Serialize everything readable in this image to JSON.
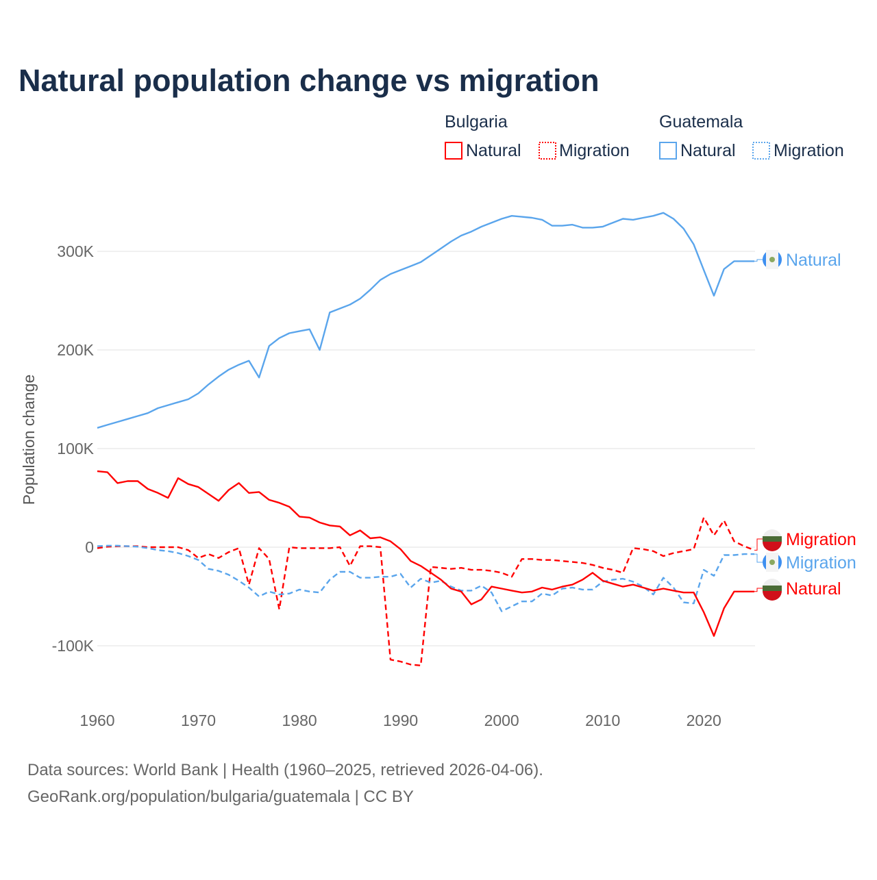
{
  "chart_data": {
    "type": "line",
    "title": "Natural population change vs migration",
    "ylabel": "Population change",
    "xlabel": "",
    "xlim": [
      1960,
      2025
    ],
    "ylim": [
      -150000,
      350000
    ],
    "x_ticks": [
      "1960",
      "1970",
      "1980",
      "1990",
      "2000",
      "2010",
      "2020"
    ],
    "y_ticks": [
      {
        "value": -100000,
        "label": "-100K"
      },
      {
        "value": 0,
        "label": "0"
      },
      {
        "value": 100000,
        "label": "100K"
      },
      {
        "value": 200000,
        "label": "200K"
      },
      {
        "value": 300000,
        "label": "300K"
      }
    ],
    "grid": true,
    "legend": {
      "placement": "top-right",
      "groups": [
        {
          "country": "Bulgaria",
          "items": [
            "Natural",
            "Migration"
          ]
        },
        {
          "country": "Guatemala",
          "items": [
            "Natural",
            "Migration"
          ]
        }
      ]
    },
    "x_start": 1960,
    "series": [
      {
        "name": "Guatemala Natural",
        "country": "Guatemala",
        "kind": "Natural",
        "color": "#5aa5ec",
        "dash": false,
        "end_label": "Natural",
        "values_k": [
          121,
          124,
          127,
          130,
          133,
          136,
          141,
          144,
          147,
          150,
          156,
          165,
          173,
          180,
          185,
          189,
          172,
          204,
          212,
          217,
          219,
          221,
          200,
          238,
          242,
          246,
          252,
          261,
          271,
          277,
          281,
          285,
          289,
          296,
          303,
          310,
          316,
          320,
          325,
          329,
          333,
          336,
          335,
          334,
          332,
          326,
          326,
          327,
          324,
          324,
          325,
          329,
          333,
          332,
          334,
          336,
          339,
          333,
          323,
          307,
          281,
          255,
          282,
          290,
          290,
          290
        ]
      },
      {
        "name": "Bulgaria Migration",
        "country": "Bulgaria",
        "kind": "Migration",
        "color": "#ff0000",
        "dash": true,
        "end_label": "Migration",
        "values_k": [
          -1,
          0.5,
          1,
          1,
          1,
          0,
          0,
          0,
          0,
          -3,
          -11,
          -7,
          -11,
          -5,
          -1,
          -38,
          -1,
          -12,
          -63,
          0,
          -1,
          -1,
          -1,
          -1,
          0,
          -19,
          1,
          1,
          0,
          -114,
          -116,
          -119,
          -120,
          -20,
          -21,
          -22,
          -21,
          -23,
          -23,
          -24,
          -26,
          -30,
          -12,
          -12,
          -13,
          -13,
          -14,
          -15,
          -16,
          -18,
          -21,
          -23,
          -26,
          -1,
          -2,
          -4,
          -9,
          -6,
          -4,
          -2,
          30,
          12,
          27,
          6,
          1,
          -3
        ]
      },
      {
        "name": "Guatemala Migration",
        "country": "Guatemala",
        "kind": "Migration",
        "color": "#5aa5ec",
        "dash": true,
        "end_label": "Migration",
        "values_k": [
          1,
          1.5,
          1.5,
          1,
          0.5,
          -1,
          -3,
          -4,
          -6,
          -9,
          -13,
          -22,
          -24,
          -28,
          -34,
          -41,
          -50,
          -45,
          -48,
          -47,
          -43,
          -45,
          -46,
          -33,
          -25,
          -25,
          -31,
          -31,
          -30,
          -30,
          -27,
          -41,
          -32,
          -36,
          -34,
          -40,
          -44,
          -44,
          -39,
          -46,
          -65,
          -60,
          -55,
          -55,
          -47,
          -49,
          -42,
          -41,
          -43,
          -43,
          -35,
          -33,
          -32,
          -35,
          -40,
          -48,
          -31,
          -41,
          -56,
          -57,
          -23,
          -29,
          -8,
          -8,
          -7,
          -7
        ]
      },
      {
        "name": "Bulgaria Natural",
        "country": "Bulgaria",
        "kind": "Natural",
        "color": "#ff0000",
        "dash": false,
        "end_label": "Natural",
        "values_k": [
          77,
          76,
          65,
          67,
          67,
          59,
          55,
          50,
          70,
          64,
          61,
          54,
          47,
          58,
          65,
          55,
          56,
          48,
          45,
          41,
          31,
          30,
          25,
          22,
          21,
          12,
          17,
          9,
          10,
          6,
          -2,
          -14,
          -19,
          -26,
          -33,
          -42,
          -45,
          -58,
          -53,
          -40,
          -42,
          -44,
          -46,
          -45,
          -41,
          -43,
          -40,
          -38,
          -33,
          -26,
          -34,
          -37,
          -40,
          -38,
          -41,
          -44,
          -42,
          -44,
          -46,
          -46,
          -66,
          -90,
          -62,
          -45,
          -45,
          -45
        ]
      }
    ]
  },
  "footer": {
    "line1": "Data sources: World Bank | Health (1960–2025, retrieved 2026-04-06).",
    "line2": "GeoRank.org/population/bulgaria/guatemala | CC BY"
  }
}
